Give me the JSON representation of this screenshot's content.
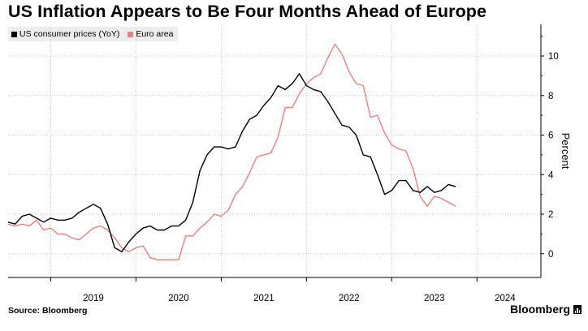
{
  "title": "US Inflation Appears to Be Four Months Ahead of Europe",
  "source": "Source: Bloomberg",
  "brand": "Bloomberg",
  "chart_data": {
    "type": "line",
    "ylabel": "Percent",
    "ylim": [
      -1.2,
      11.6
    ],
    "yticks": [
      0,
      2,
      4,
      6,
      8,
      10
    ],
    "xticks": [
      {
        "label": "2019",
        "x": 2019.5
      },
      {
        "label": "2020",
        "x": 2020.5
      },
      {
        "label": "2021",
        "x": 2021.5
      },
      {
        "label": "2022",
        "x": 2022.5
      },
      {
        "label": "2023",
        "x": 2023.5
      },
      {
        "label": "2024",
        "x": 2024.33
      }
    ],
    "xlim": [
      2018.5,
      2024.75
    ],
    "grid": "vertical dotted",
    "legend_position": "top-left",
    "series": [
      {
        "name": "US consumer prices (YoY)",
        "color": "#000000",
        "start": 2018.5,
        "step_months": 1,
        "values": [
          1.6,
          1.5,
          1.9,
          2.0,
          1.8,
          1.6,
          1.8,
          1.7,
          1.7,
          1.8,
          2.1,
          2.3,
          2.5,
          2.3,
          1.5,
          0.3,
          0.1,
          0.6,
          1.0,
          1.3,
          1.4,
          1.2,
          1.2,
          1.4,
          1.4,
          1.7,
          2.6,
          4.2,
          5.0,
          5.4,
          5.4,
          5.3,
          5.4,
          6.2,
          6.8,
          7.0,
          7.5,
          7.9,
          8.5,
          8.3,
          8.6,
          9.1,
          8.5,
          8.3,
          8.2,
          7.7,
          7.1,
          6.5,
          6.4,
          6.0,
          5.0,
          4.9,
          4.0,
          3.0,
          3.2,
          3.7,
          3.7,
          3.2,
          3.1,
          3.4,
          3.1,
          3.2,
          3.5,
          3.4
        ]
      },
      {
        "name": "Euro area",
        "color": "#f27d7d",
        "start": 2018.5,
        "step_months": 1,
        "values": [
          1.5,
          1.4,
          1.5,
          1.4,
          1.7,
          1.2,
          1.3,
          1.0,
          1.0,
          0.8,
          0.7,
          1.0,
          1.3,
          1.4,
          1.2,
          0.8,
          0.3,
          0.1,
          0.3,
          0.4,
          -0.2,
          -0.3,
          -0.3,
          -0.3,
          -0.3,
          0.9,
          0.9,
          1.3,
          1.6,
          2.0,
          1.9,
          2.2,
          3.0,
          3.4,
          4.1,
          4.9,
          5.0,
          5.1,
          5.9,
          7.4,
          7.4,
          8.1,
          8.6,
          8.9,
          9.1,
          9.9,
          10.6,
          10.1,
          9.2,
          8.6,
          8.5,
          6.9,
          7.0,
          6.1,
          5.5,
          5.3,
          5.2,
          4.3,
          2.9,
          2.4,
          2.9,
          2.8,
          2.6,
          2.4
        ]
      }
    ]
  }
}
